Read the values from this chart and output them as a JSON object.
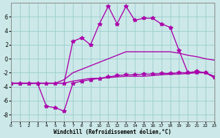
{
  "xlabel": "Windchill (Refroidissement éolien,°C)",
  "background_color": "#cce8e8",
  "grid_color": "#99cccc",
  "line_color": "#aa00aa",
  "xlim": [
    0,
    23
  ],
  "ylim": [
    -9,
    8
  ],
  "xticks": [
    0,
    1,
    2,
    3,
    4,
    5,
    6,
    7,
    8,
    9,
    10,
    11,
    12,
    13,
    14,
    15,
    16,
    17,
    18,
    19,
    20,
    21,
    22,
    23
  ],
  "yticks": [
    -8,
    -6,
    -4,
    -2,
    0,
    2,
    4,
    6
  ],
  "series": [
    {
      "x": [
        0,
        1,
        2,
        3,
        4,
        5,
        6,
        7,
        8,
        9,
        10,
        11,
        12,
        13,
        14,
        15,
        16,
        17,
        18,
        19,
        20,
        21,
        22,
        23
      ],
      "y": [
        -3.5,
        -3.5,
        -3.5,
        -3.5,
        -3.5,
        -3.5,
        -3.0,
        -2.0,
        -1.5,
        -1.0,
        -0.5,
        0.0,
        0.5,
        1.0,
        1.0,
        1.0,
        1.0,
        1.0,
        1.0,
        0.8,
        0.5,
        0.3,
        0.0,
        -0.2
      ],
      "marker": null,
      "linewidth": 1.0
    },
    {
      "x": [
        0,
        1,
        2,
        3,
        4,
        5,
        6,
        7,
        8,
        9,
        10,
        11,
        12,
        13,
        14,
        15,
        16,
        17,
        18,
        19,
        20,
        21,
        22,
        23
      ],
      "y": [
        -3.5,
        -3.5,
        -3.5,
        -3.5,
        -3.5,
        -3.5,
        -3.5,
        -3.2,
        -3.0,
        -2.8,
        -2.8,
        -2.7,
        -2.6,
        -2.5,
        -2.5,
        -2.5,
        -2.4,
        -2.3,
        -2.2,
        -2.2,
        -2.1,
        -2.0,
        -2.0,
        -2.5
      ],
      "marker": null,
      "linewidth": 1.0
    },
    {
      "x": [
        0,
        1,
        2,
        3,
        4,
        5,
        6,
        7,
        8,
        9,
        10,
        11,
        12,
        13,
        14,
        15,
        16,
        17,
        18,
        19,
        20,
        21,
        22,
        23
      ],
      "y": [
        -3.5,
        -3.5,
        -3.5,
        -3.5,
        -6.8,
        -7.0,
        -7.5,
        -3.5,
        -3.2,
        -3.0,
        -2.8,
        -2.6,
        -2.4,
        -2.3,
        -2.3,
        -2.2,
        -2.2,
        -2.1,
        -2.1,
        -2.0,
        -2.0,
        -2.0,
        -2.0,
        -2.7
      ],
      "marker": "*",
      "markersize": 4,
      "linewidth": 1.0
    },
    {
      "x": [
        0,
        1,
        2,
        3,
        4,
        5,
        6,
        7,
        8,
        9,
        10,
        11,
        12,
        13,
        14,
        15,
        16,
        17,
        18,
        19,
        20,
        21,
        22,
        23
      ],
      "y": [
        -3.5,
        -3.5,
        -3.5,
        -3.5,
        -3.5,
        -3.5,
        -3.5,
        2.5,
        3.0,
        2.0,
        5.0,
        7.5,
        5.0,
        7.5,
        5.5,
        5.8,
        5.8,
        5.0,
        4.5,
        1.2,
        -2.0,
        -1.8,
        -2.0,
        -2.7
      ],
      "marker": "*",
      "markersize": 4,
      "linewidth": 1.0
    }
  ]
}
